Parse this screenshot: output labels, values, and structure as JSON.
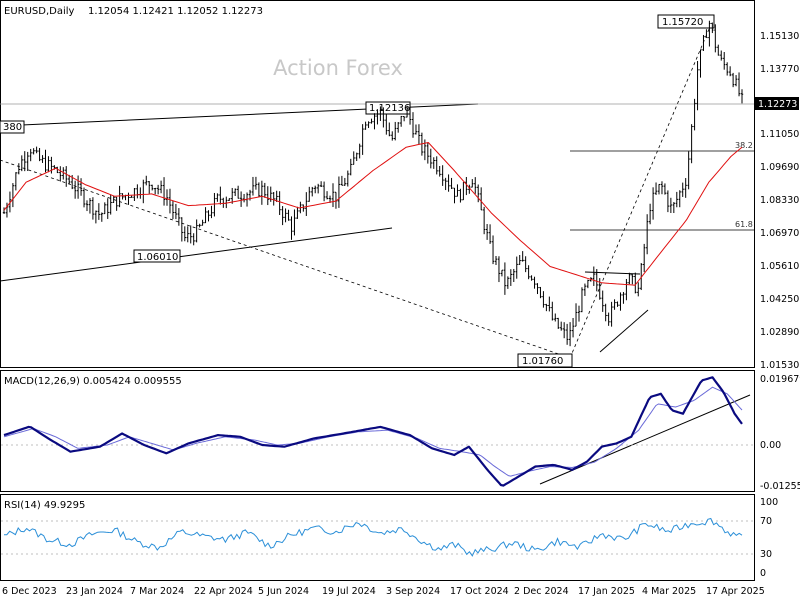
{
  "chart_data": [
    {
      "panel": "price",
      "type": "candlestick",
      "title": "EURUSD,Daily",
      "ohlc_text": "1.12054 1.12421 1.12052 1.12273",
      "watermark": "Action Forex",
      "ylim": [
        1.0103,
        1.1642
      ],
      "y_ticks": [
        "1.15130",
        "1.13770",
        "1.12273",
        "1.11050",
        "1.09690",
        "1.08330",
        "1.06970",
        "1.05610",
        "1.04250",
        "1.02890",
        "1.01530"
      ],
      "current_price_label": "1.12273",
      "annotations": [
        "1.15720",
        "1.12136",
        "1.06010",
        "1.01760",
        "380"
      ],
      "fib_levels": [
        {
          "label": "38.2",
          "value": 1.1035
        },
        {
          "label": "61.8",
          "value": 1.0705
        }
      ],
      "x_labels": [
        "6 Dec 2023",
        "23 Jan 2024",
        "7 Mar 2024",
        "22 Apr 2024",
        "5 Jun 2024",
        "19 Jul 2024",
        "3 Sep 2024",
        "17 Oct 2024",
        "2 Dec 2024",
        "17 Jan 2025",
        "4 Mar 2025",
        "17 Apr 2025"
      ],
      "close_path": [
        {
          "x": 0,
          "y": 1.075
        },
        {
          "x": 0.02,
          "y": 1.095
        },
        {
          "x": 0.035,
          "y": 1.103
        },
        {
          "x": 0.045,
          "y": 1.098
        },
        {
          "x": 0.07,
          "y": 1.093
        },
        {
          "x": 0.09,
          "y": 1.088
        },
        {
          "x": 0.11,
          "y": 1.081
        },
        {
          "x": 0.13,
          "y": 1.074
        },
        {
          "x": 0.15,
          "y": 1.08
        },
        {
          "x": 0.18,
          "y": 1.085
        },
        {
          "x": 0.2,
          "y": 1.088
        },
        {
          "x": 0.22,
          "y": 1.082
        },
        {
          "x": 0.245,
          "y": 1.064
        },
        {
          "x": 0.26,
          "y": 1.066
        },
        {
          "x": 0.29,
          "y": 1.081
        },
        {
          "x": 0.32,
          "y": 1.083
        },
        {
          "x": 0.35,
          "y": 1.085
        },
        {
          "x": 0.37,
          "y": 1.079
        },
        {
          "x": 0.39,
          "y": 1.069
        },
        {
          "x": 0.42,
          "y": 1.087
        },
        {
          "x": 0.45,
          "y": 1.082
        },
        {
          "x": 0.47,
          "y": 1.093
        },
        {
          "x": 0.49,
          "y": 1.115
        },
        {
          "x": 0.51,
          "y": 1.118
        },
        {
          "x": 0.525,
          "y": 1.106
        },
        {
          "x": 0.545,
          "y": 1.119
        },
        {
          "x": 0.565,
          "y": 1.103
        },
        {
          "x": 0.59,
          "y": 1.094
        },
        {
          "x": 0.615,
          "y": 1.082
        },
        {
          "x": 0.635,
          "y": 1.09
        },
        {
          "x": 0.66,
          "y": 1.058
        },
        {
          "x": 0.68,
          "y": 1.044
        },
        {
          "x": 0.7,
          "y": 1.054
        },
        {
          "x": 0.72,
          "y": 1.046
        },
        {
          "x": 0.745,
          "y": 1.028
        },
        {
          "x": 0.765,
          "y": 1.021
        },
        {
          "x": 0.785,
          "y": 1.041
        },
        {
          "x": 0.8,
          "y": 1.047
        },
        {
          "x": 0.82,
          "y": 1.03
        },
        {
          "x": 0.845,
          "y": 1.047
        },
        {
          "x": 0.86,
          "y": 1.042
        },
        {
          "x": 0.875,
          "y": 1.078
        },
        {
          "x": 0.89,
          "y": 1.087
        },
        {
          "x": 0.905,
          "y": 1.076
        },
        {
          "x": 0.925,
          "y": 1.09
        },
        {
          "x": 0.94,
          "y": 1.137
        },
        {
          "x": 0.955,
          "y": 1.157
        },
        {
          "x": 0.97,
          "y": 1.14
        },
        {
          "x": 0.985,
          "y": 1.135
        },
        {
          "x": 1.0,
          "y": 1.1227
        }
      ],
      "ma_path": [
        {
          "x": 0,
          "y": 1.076
        },
        {
          "x": 0.03,
          "y": 1.088
        },
        {
          "x": 0.07,
          "y": 1.094
        },
        {
          "x": 0.11,
          "y": 1.087
        },
        {
          "x": 0.15,
          "y": 1.082
        },
        {
          "x": 0.2,
          "y": 1.083
        },
        {
          "x": 0.25,
          "y": 1.078
        },
        {
          "x": 0.3,
          "y": 1.079
        },
        {
          "x": 0.35,
          "y": 1.082
        },
        {
          "x": 0.4,
          "y": 1.077
        },
        {
          "x": 0.45,
          "y": 1.08
        },
        {
          "x": 0.5,
          "y": 1.093
        },
        {
          "x": 0.545,
          "y": 1.103
        },
        {
          "x": 0.575,
          "y": 1.105
        },
        {
          "x": 0.61,
          "y": 1.093
        },
        {
          "x": 0.66,
          "y": 1.075
        },
        {
          "x": 0.7,
          "y": 1.063
        },
        {
          "x": 0.74,
          "y": 1.052
        },
        {
          "x": 0.77,
          "y": 1.049
        },
        {
          "x": 0.81,
          "y": 1.045
        },
        {
          "x": 0.855,
          "y": 1.044
        },
        {
          "x": 0.89,
          "y": 1.058
        },
        {
          "x": 0.925,
          "y": 1.072
        },
        {
          "x": 0.955,
          "y": 1.088
        },
        {
          "x": 0.985,
          "y": 1.099
        },
        {
          "x": 1.0,
          "y": 1.103
        }
      ]
    },
    {
      "panel": "macd",
      "type": "line",
      "title": "MACD(12,26,9) 0.005424 0.009555",
      "ylim": [
        -0.014,
        0.0205
      ],
      "y_ticks": [
        "0.019679",
        "0.00",
        "-0.012552"
      ],
      "main_path": [
        {
          "x": 0,
          "y": 0.002
        },
        {
          "x": 0.035,
          "y": 0.0046
        },
        {
          "x": 0.06,
          "y": 0.001
        },
        {
          "x": 0.09,
          "y": -0.003
        },
        {
          "x": 0.13,
          "y": -0.0015
        },
        {
          "x": 0.16,
          "y": 0.0025
        },
        {
          "x": 0.19,
          "y": -0.001
        },
        {
          "x": 0.22,
          "y": -0.0035
        },
        {
          "x": 0.25,
          "y": -0.0005
        },
        {
          "x": 0.29,
          "y": 0.002
        },
        {
          "x": 0.32,
          "y": 0.0015
        },
        {
          "x": 0.35,
          "y": -0.001
        },
        {
          "x": 0.38,
          "y": -0.0015
        },
        {
          "x": 0.42,
          "y": 0.001
        },
        {
          "x": 0.46,
          "y": 0.0025
        },
        {
          "x": 0.51,
          "y": 0.0045
        },
        {
          "x": 0.55,
          "y": 0.002
        },
        {
          "x": 0.58,
          "y": -0.002
        },
        {
          "x": 0.61,
          "y": -0.004
        },
        {
          "x": 0.63,
          "y": -0.0015
        },
        {
          "x": 0.655,
          "y": -0.0085
        },
        {
          "x": 0.675,
          "y": -0.0135
        },
        {
          "x": 0.69,
          "y": -0.0115
        },
        {
          "x": 0.72,
          "y": -0.0075
        },
        {
          "x": 0.745,
          "y": -0.007
        },
        {
          "x": 0.77,
          "y": -0.0085
        },
        {
          "x": 0.79,
          "y": -0.006
        },
        {
          "x": 0.81,
          "y": -0.0015
        },
        {
          "x": 0.83,
          "y": -0.0005
        },
        {
          "x": 0.85,
          "y": 0.0015
        },
        {
          "x": 0.875,
          "y": 0.0135
        },
        {
          "x": 0.89,
          "y": 0.0145
        },
        {
          "x": 0.905,
          "y": 0.0095
        },
        {
          "x": 0.92,
          "y": 0.0085
        },
        {
          "x": 0.945,
          "y": 0.0185
        },
        {
          "x": 0.96,
          "y": 0.0195
        },
        {
          "x": 0.975,
          "y": 0.015
        },
        {
          "x": 0.99,
          "y": 0.0085
        },
        {
          "x": 1.0,
          "y": 0.0054
        }
      ],
      "signal_path": [
        {
          "x": 0,
          "y": 0.0015
        },
        {
          "x": 0.04,
          "y": 0.004
        },
        {
          "x": 0.07,
          "y": 0.0015
        },
        {
          "x": 0.1,
          "y": -0.002
        },
        {
          "x": 0.14,
          "y": -0.001
        },
        {
          "x": 0.17,
          "y": 0.0015
        },
        {
          "x": 0.2,
          "y": -0.0005
        },
        {
          "x": 0.23,
          "y": -0.0025
        },
        {
          "x": 0.26,
          "y": -0.0005
        },
        {
          "x": 0.3,
          "y": 0.0015
        },
        {
          "x": 0.34,
          "y": 0.0005
        },
        {
          "x": 0.37,
          "y": -0.001
        },
        {
          "x": 0.4,
          "y": -0.0005
        },
        {
          "x": 0.44,
          "y": 0.0015
        },
        {
          "x": 0.48,
          "y": 0.003
        },
        {
          "x": 0.52,
          "y": 0.0035
        },
        {
          "x": 0.56,
          "y": 0.001
        },
        {
          "x": 0.59,
          "y": -0.002
        },
        {
          "x": 0.62,
          "y": -0.003
        },
        {
          "x": 0.645,
          "y": -0.004
        },
        {
          "x": 0.665,
          "y": -0.0075
        },
        {
          "x": 0.685,
          "y": -0.0105
        },
        {
          "x": 0.71,
          "y": -0.009
        },
        {
          "x": 0.74,
          "y": -0.0075
        },
        {
          "x": 0.77,
          "y": -0.0078
        },
        {
          "x": 0.8,
          "y": -0.0062
        },
        {
          "x": 0.83,
          "y": -0.002
        },
        {
          "x": 0.86,
          "y": 0.0035
        },
        {
          "x": 0.885,
          "y": 0.0115
        },
        {
          "x": 0.91,
          "y": 0.0105
        },
        {
          "x": 0.935,
          "y": 0.0125
        },
        {
          "x": 0.96,
          "y": 0.0165
        },
        {
          "x": 0.98,
          "y": 0.0145
        },
        {
          "x": 1.0,
          "y": 0.0096
        }
      ]
    },
    {
      "panel": "rsi",
      "type": "line",
      "title": "RSI(14) 49.9295",
      "ylim": [
        0,
        100
      ],
      "y_ticks": [
        "100",
        "70",
        "30",
        "0"
      ],
      "levels": [
        70,
        30
      ],
      "path": [
        {
          "x": 0,
          "y": 52
        },
        {
          "x": 0.03,
          "y": 63
        },
        {
          "x": 0.06,
          "y": 48
        },
        {
          "x": 0.09,
          "y": 42
        },
        {
          "x": 0.12,
          "y": 55
        },
        {
          "x": 0.15,
          "y": 60
        },
        {
          "x": 0.18,
          "y": 45
        },
        {
          "x": 0.21,
          "y": 38
        },
        {
          "x": 0.24,
          "y": 58
        },
        {
          "x": 0.27,
          "y": 52
        },
        {
          "x": 0.3,
          "y": 48
        },
        {
          "x": 0.33,
          "y": 57
        },
        {
          "x": 0.36,
          "y": 40
        },
        {
          "x": 0.39,
          "y": 54
        },
        {
          "x": 0.42,
          "y": 62
        },
        {
          "x": 0.45,
          "y": 58
        },
        {
          "x": 0.48,
          "y": 70
        },
        {
          "x": 0.51,
          "y": 56
        },
        {
          "x": 0.54,
          "y": 62
        },
        {
          "x": 0.57,
          "y": 44
        },
        {
          "x": 0.59,
          "y": 36
        },
        {
          "x": 0.61,
          "y": 42
        },
        {
          "x": 0.63,
          "y": 31
        },
        {
          "x": 0.66,
          "y": 36
        },
        {
          "x": 0.69,
          "y": 44
        },
        {
          "x": 0.72,
          "y": 34
        },
        {
          "x": 0.75,
          "y": 46
        },
        {
          "x": 0.78,
          "y": 38
        },
        {
          "x": 0.81,
          "y": 55
        },
        {
          "x": 0.84,
          "y": 48
        },
        {
          "x": 0.87,
          "y": 68
        },
        {
          "x": 0.9,
          "y": 58
        },
        {
          "x": 0.93,
          "y": 68
        },
        {
          "x": 0.96,
          "y": 72
        },
        {
          "x": 0.98,
          "y": 58
        },
        {
          "x": 1.0,
          "y": 49.9
        }
      ]
    }
  ]
}
